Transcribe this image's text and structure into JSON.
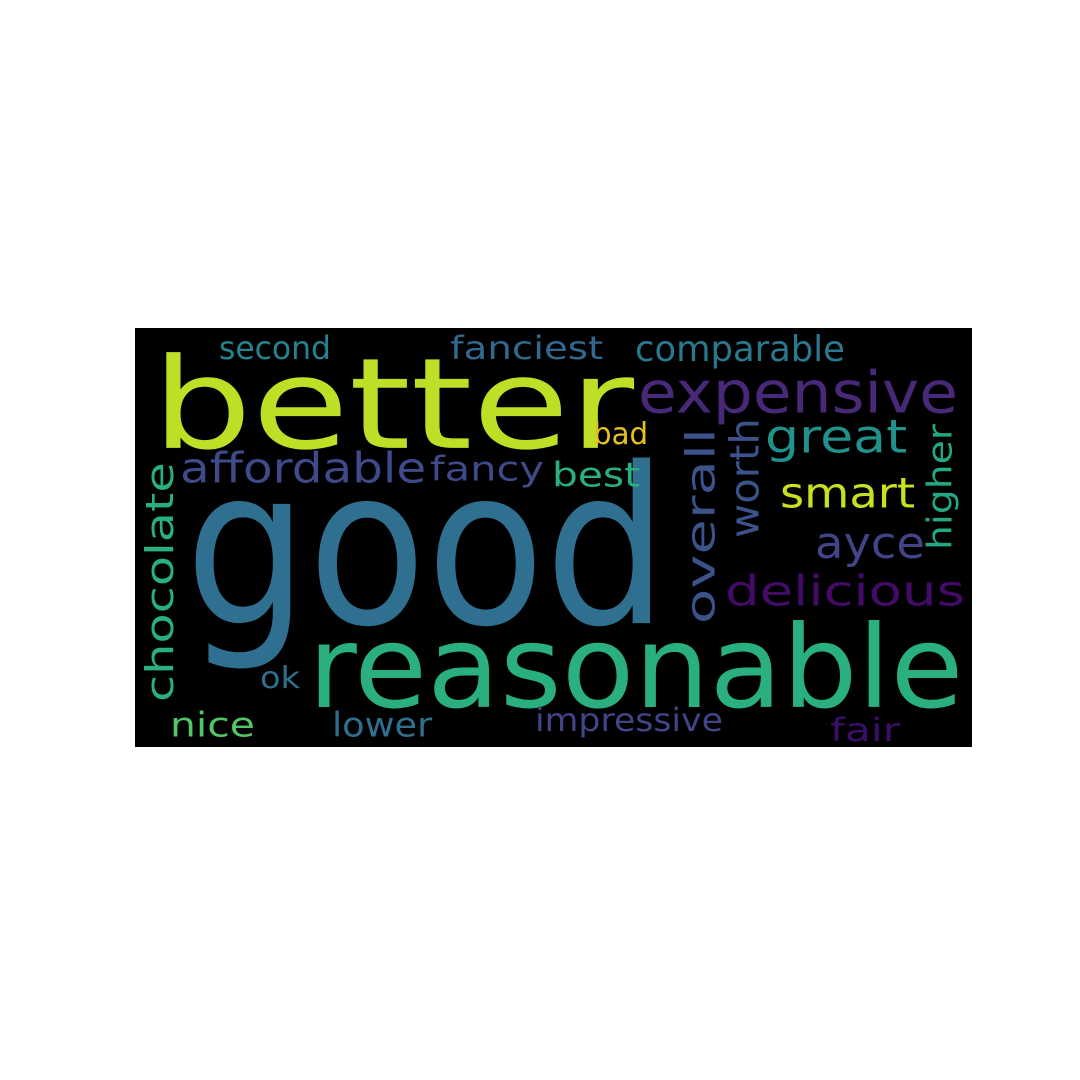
{
  "background_color": "#000000",
  "words": [
    {
      "id": "good",
      "text": "good",
      "color": "#2f6f8f"
    },
    {
      "id": "better",
      "text": "better",
      "color": "#bddf26"
    },
    {
      "id": "reasonable",
      "text": "reasonable",
      "color": "#2ab07f"
    },
    {
      "id": "expensive",
      "text": "expensive",
      "color": "#482878"
    },
    {
      "id": "affordable",
      "text": "affordable",
      "color": "#3e4a89"
    },
    {
      "id": "chocolate",
      "text": "chocolate",
      "color": "#2ab07f"
    },
    {
      "id": "delicious",
      "text": "delicious",
      "color": "#440a68"
    },
    {
      "id": "overall",
      "text": "overall",
      "color": "#3b528b"
    },
    {
      "id": "worth",
      "text": "worth",
      "color": "#3b528b"
    },
    {
      "id": "great",
      "text": "great",
      "color": "#21918c"
    },
    {
      "id": "smart",
      "text": "smart",
      "color": "#c8e020"
    },
    {
      "id": "ayce",
      "text": "ayce",
      "color": "#414487"
    },
    {
      "id": "higher",
      "text": "higher",
      "color": "#22a884"
    },
    {
      "id": "comparable",
      "text": "comparable",
      "color": "#2a788e"
    },
    {
      "id": "fanciest",
      "text": "fanciest",
      "color": "#31688e"
    },
    {
      "id": "second",
      "text": "second",
      "color": "#26828e"
    },
    {
      "id": "fancy",
      "text": "fancy",
      "color": "#3e4a89"
    },
    {
      "id": "best",
      "text": "best",
      "color": "#2ab07f"
    },
    {
      "id": "bad",
      "text": "bad",
      "color": "#e6c21f"
    },
    {
      "id": "ok",
      "text": "ok",
      "color": "#2f6f8f"
    },
    {
      "id": "nice",
      "text": "nice",
      "color": "#52c569"
    },
    {
      "id": "lower",
      "text": "lower",
      "color": "#2f6f8f"
    },
    {
      "id": "impressive",
      "text": "impressive",
      "color": "#414487"
    },
    {
      "id": "fair",
      "text": "fair",
      "color": "#3a0f6a"
    }
  ]
}
